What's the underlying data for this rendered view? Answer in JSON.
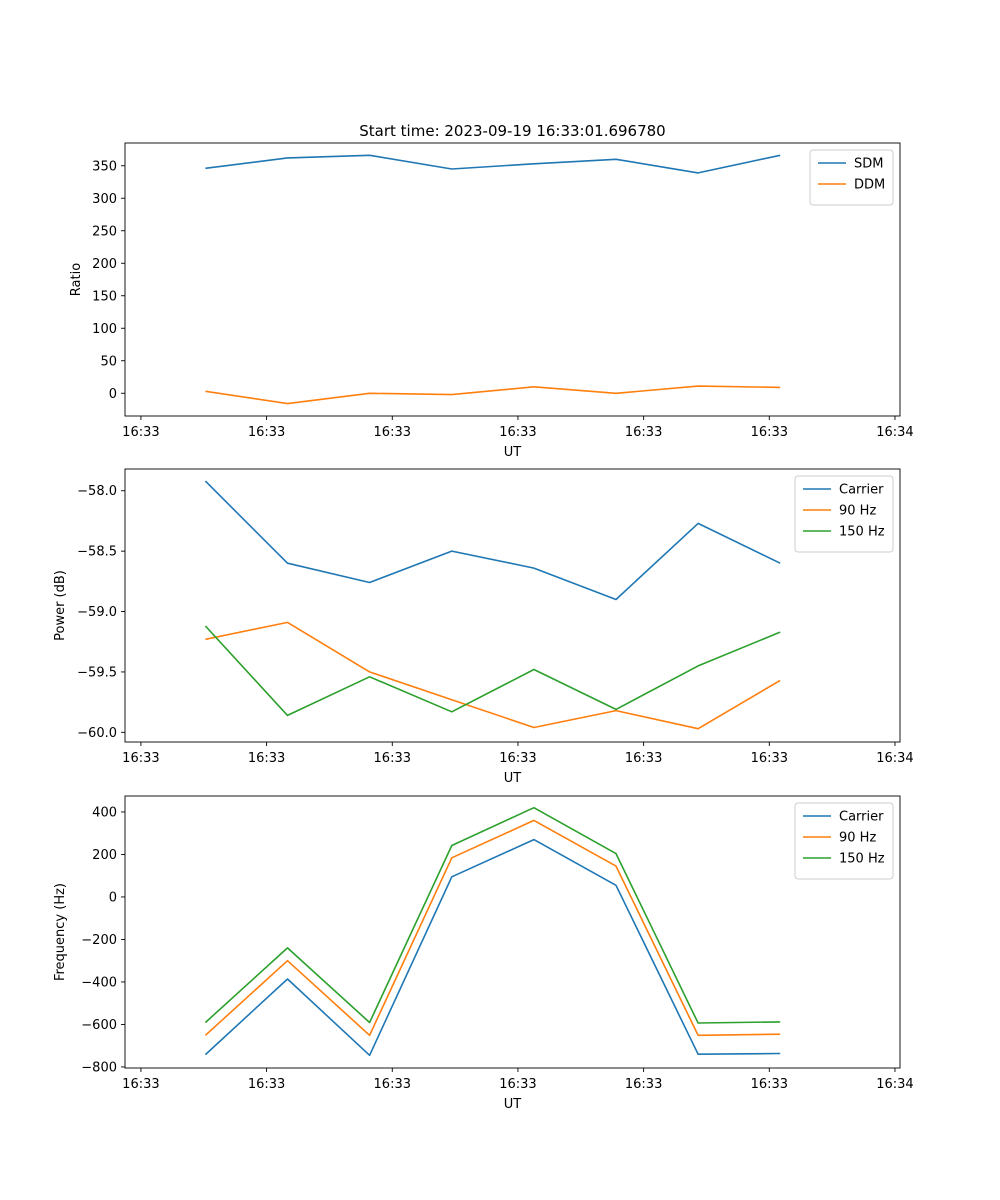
{
  "title": "Start time: 2023-09-19 16:33:01.696780",
  "chart_data": [
    {
      "type": "line",
      "ylabel": "Ratio",
      "xlabel": "UT",
      "xlim": [
        0,
        9.25
      ],
      "ylim": [
        -35,
        385
      ],
      "yticks": [
        0,
        50,
        100,
        150,
        200,
        250,
        300,
        350
      ],
      "ytick_labels": [
        "0",
        "50",
        "100",
        "150",
        "200",
        "250",
        "300",
        "350"
      ],
      "xticks": [
        0.19,
        1.69,
        3.19,
        4.69,
        6.19,
        7.69,
        9.19
      ],
      "xtick_labels": [
        "16:33",
        "16:33",
        "16:33",
        "16:33",
        "16:33",
        "16:33",
        "16:34"
      ],
      "legend_position": "top-right",
      "x": [
        0.96,
        1.94,
        2.92,
        3.9,
        4.88,
        5.86,
        6.84,
        7.82
      ],
      "series": [
        {
          "name": "SDM",
          "color": "#1f77b4",
          "values": [
            346,
            362,
            366,
            345,
            353,
            360,
            339,
            366
          ]
        },
        {
          "name": "DDM",
          "color": "#ff7f0e",
          "values": [
            3,
            -16,
            0,
            -2,
            10,
            0,
            11,
            9
          ]
        }
      ]
    },
    {
      "type": "line",
      "ylabel": "Power (dB)",
      "xlabel": "UT",
      "xlim": [
        0,
        9.25
      ],
      "ylim": [
        -60.08,
        -57.82
      ],
      "yticks": [
        -60.0,
        -59.5,
        -59.0,
        -58.5,
        -58.0
      ],
      "ytick_labels": [
        "−60.0",
        "−59.5",
        "−59.0",
        "−58.5",
        "−58.0"
      ],
      "xticks": [
        0.19,
        1.69,
        3.19,
        4.69,
        6.19,
        7.69,
        9.19
      ],
      "xtick_labels": [
        "16:33",
        "16:33",
        "16:33",
        "16:33",
        "16:33",
        "16:33",
        "16:34"
      ],
      "legend_position": "top-right",
      "x": [
        0.96,
        1.94,
        2.92,
        3.9,
        4.88,
        5.86,
        6.84,
        7.82
      ],
      "series": [
        {
          "name": "Carrier",
          "color": "#1f77b4",
          "values": [
            -57.92,
            -58.6,
            -58.76,
            -58.5,
            -58.64,
            -58.9,
            -58.27,
            -58.6
          ]
        },
        {
          "name": "90 Hz",
          "color": "#ff7f0e",
          "values": [
            -59.23,
            -59.09,
            -59.5,
            -59.73,
            -59.96,
            -59.82,
            -59.97,
            -59.57
          ]
        },
        {
          "name": "150 Hz",
          "color": "#2ca02c",
          "values": [
            -59.12,
            -59.86,
            -59.54,
            -59.83,
            -59.48,
            -59.81,
            -59.45,
            -59.17
          ]
        }
      ]
    },
    {
      "type": "line",
      "ylabel": "Frequency (Hz)",
      "xlabel": "UT",
      "xlim": [
        0,
        9.25
      ],
      "ylim": [
        -805,
        475
      ],
      "yticks": [
        -800,
        -600,
        -400,
        -200,
        0,
        200,
        400
      ],
      "ytick_labels": [
        "−800",
        "−600",
        "−400",
        "−200",
        "0",
        "200",
        "400"
      ],
      "xticks": [
        0.19,
        1.69,
        3.19,
        4.69,
        6.19,
        7.69,
        9.19
      ],
      "xtick_labels": [
        "16:33",
        "16:33",
        "16:33",
        "16:33",
        "16:33",
        "16:33",
        "16:34"
      ],
      "legend_position": "top-right",
      "x": [
        0.96,
        1.94,
        2.92,
        3.9,
        4.88,
        5.86,
        6.84,
        7.82
      ],
      "series": [
        {
          "name": "Carrier",
          "color": "#1f77b4",
          "values": [
            -742,
            -386,
            -745,
            95,
            270,
            55,
            -740,
            -737
          ]
        },
        {
          "name": "90 Hz",
          "color": "#ff7f0e",
          "values": [
            -651,
            -300,
            -651,
            184,
            360,
            145,
            -651,
            -646
          ]
        },
        {
          "name": "150 Hz",
          "color": "#2ca02c",
          "values": [
            -591,
            -240,
            -591,
            242,
            420,
            204,
            -593,
            -588
          ]
        }
      ]
    }
  ]
}
